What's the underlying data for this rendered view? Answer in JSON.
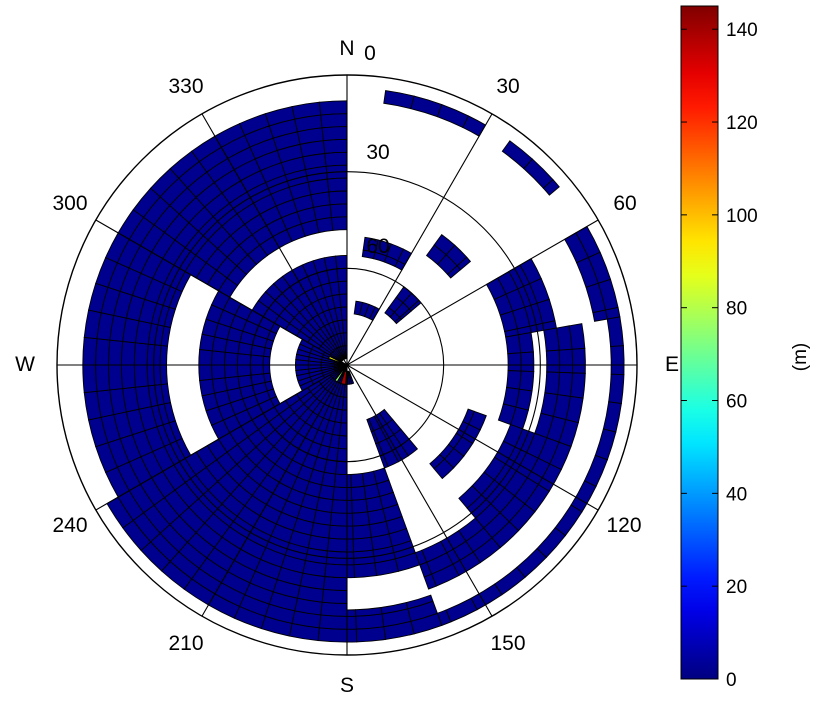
{
  "chart_data": {
    "type": "heatmap",
    "subtype": "polar",
    "title": "",
    "compass": {
      "north": "N",
      "east": "E",
      "south": "S",
      "west": "W"
    },
    "angle_ticks": [
      "0",
      "30",
      "60",
      "120",
      "150",
      "210",
      "240",
      "300",
      "330"
    ],
    "radial_ticks": [
      "30",
      "60"
    ],
    "radial_axis": {
      "min": 0,
      "max": 90,
      "direction": "inward"
    },
    "angular_bin_deg": 6,
    "radial_bin_deg": 4,
    "colorbar": {
      "label": "(m)",
      "min": 0,
      "max": 145,
      "ticks": [
        0,
        20,
        40,
        60,
        80,
        100,
        120,
        140
      ],
      "colormap": "jet"
    },
    "background_value": 2,
    "wedges": [
      {
        "az": [
          300,
          360
        ],
        "rings": [
          [
            8,
            48
          ],
          [
            56,
            88
          ]
        ]
      },
      {
        "az": [
          198,
          240
        ],
        "rings": [
          [
            4,
            90
          ]
        ]
      },
      {
        "az": [
          240,
          300
        ],
        "rings": [
          [
            8,
            34
          ],
          [
            44,
            66
          ],
          [
            74,
            90
          ]
        ]
      },
      {
        "az": [
          8,
          30
        ],
        "rings": [
          [
            4,
            8
          ],
          [
            50,
            56
          ],
          [
            70,
            74
          ]
        ]
      },
      {
        "az": [
          36,
          50
        ],
        "rings": [
          [
            4,
            8
          ],
          [
            40,
            48
          ],
          [
            60,
            70
          ]
        ]
      },
      {
        "az": [
          60,
          80
        ],
        "rings": [
          [
            4,
            12
          ],
          [
            24,
            40
          ]
        ]
      },
      {
        "az": [
          80,
          110
        ],
        "rings": [
          [
            4,
            8
          ],
          [
            16,
            28
          ],
          [
            32,
            40
          ]
        ]
      },
      {
        "az": [
          110,
          140
        ],
        "rings": [
          [
            4,
            8
          ],
          [
            16,
            36
          ],
          [
            44,
            50
          ]
        ]
      },
      {
        "az": [
          140,
          160
        ],
        "rings": [
          [
            4,
            8
          ],
          [
            16,
            28
          ],
          [
            56,
            72
          ]
        ]
      },
      {
        "az": [
          160,
          180
        ],
        "rings": [
          [
            4,
            14
          ],
          [
            24,
            56
          ],
          [
            84,
            88
          ]
        ]
      },
      {
        "az": [
          180,
          198
        ],
        "rings": [
          [
            4,
            90
          ]
        ]
      }
    ],
    "highlighted_cells": [
      {
        "az": [
          184,
          198
        ],
        "ring": [
          84,
          88
        ],
        "value": 140
      },
      {
        "az": [
          210,
          218
        ],
        "ring": [
          84,
          88
        ],
        "value": 75
      },
      {
        "az": [
          290,
          296
        ],
        "ring": [
          84,
          88
        ],
        "value": 90
      }
    ]
  }
}
